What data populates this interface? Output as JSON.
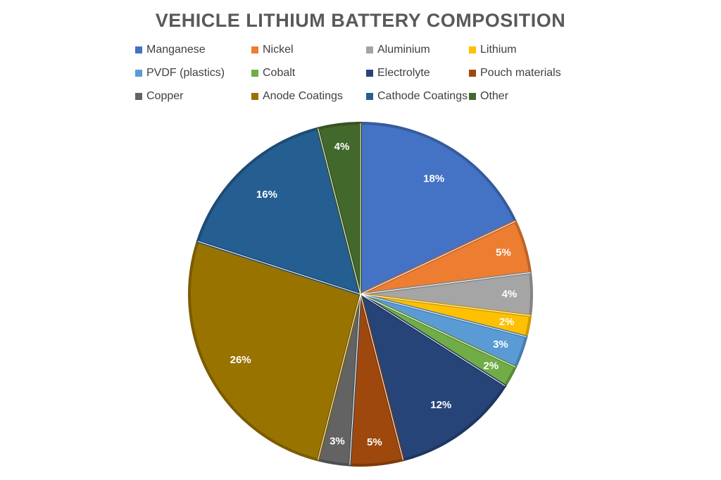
{
  "chart_data": {
    "type": "pie",
    "title": "VEHICLE LITHIUM BATTERY COMPOSITION",
    "legend_position": "top",
    "slices": [
      {
        "name": "Manganese",
        "value": 18,
        "label": "18%",
        "color": "#4472C4"
      },
      {
        "name": "Nickel",
        "value": 5,
        "label": "5%",
        "color": "#ED7D31"
      },
      {
        "name": "Aluminium",
        "value": 4,
        "label": "4%",
        "color": "#A5A5A5"
      },
      {
        "name": "Lithium",
        "value": 2,
        "label": "2%",
        "color": "#FFC000"
      },
      {
        "name": "PVDF (plastics)",
        "value": 3,
        "label": "3%",
        "color": "#5B9BD5"
      },
      {
        "name": "Cobalt",
        "value": 2,
        "label": "2%",
        "color": "#70AD47"
      },
      {
        "name": "Electrolyte",
        "value": 12,
        "label": "12%",
        "color": "#264478"
      },
      {
        "name": "Pouch materials",
        "value": 5,
        "label": "5%",
        "color": "#9E480E"
      },
      {
        "name": "Copper",
        "value": 3,
        "label": "3%",
        "color": "#636363"
      },
      {
        "name": "Anode Coatings",
        "value": 26,
        "label": "26%",
        "color": "#997300"
      },
      {
        "name": "Cathode Coatings",
        "value": 16,
        "label": "16%",
        "color": "#255E91"
      },
      {
        "name": "Other",
        "value": 4,
        "label": "4%",
        "color": "#43682B"
      }
    ]
  }
}
